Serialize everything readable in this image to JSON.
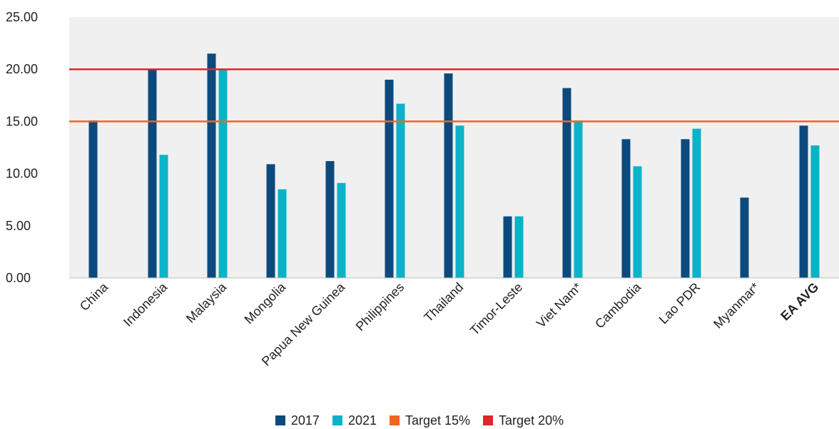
{
  "chart_data": {
    "type": "bar",
    "categories": [
      "China",
      "Indonesia",
      "Malaysia",
      "Mongolia",
      "Papua New Guinea",
      "Philippines",
      "Thailand",
      "Timor-Leste",
      "Viet Nam*",
      "Cambodia",
      "Lao PDR",
      "Myanmar*",
      "EA AVG"
    ],
    "bold_categories": [
      "EA AVG"
    ],
    "series": [
      {
        "name": "2017",
        "color": "#0c4a7e",
        "values": [
          15.1,
          20.0,
          21.5,
          10.9,
          11.2,
          19.0,
          19.6,
          5.9,
          18.2,
          13.3,
          13.3,
          7.7,
          14.6
        ]
      },
      {
        "name": "2021",
        "color": "#0ab3c8",
        "values": [
          null,
          11.8,
          20.0,
          8.5,
          9.1,
          16.7,
          14.6,
          5.9,
          15.1,
          10.7,
          14.3,
          null,
          12.7
        ]
      }
    ],
    "reference_lines": [
      {
        "name": "Target 15%",
        "value": 15,
        "color": "#f26522"
      },
      {
        "name": "Target 20%",
        "value": 20,
        "color": "#e0262b"
      }
    ],
    "y_ticks": [
      "0.00",
      "5.00",
      "10.00",
      "15.00",
      "20.00",
      "25.00"
    ],
    "ylim": [
      0,
      25
    ],
    "grid": false,
    "plot_background": "#f0f0f0",
    "legend_position": "bottom-center"
  }
}
